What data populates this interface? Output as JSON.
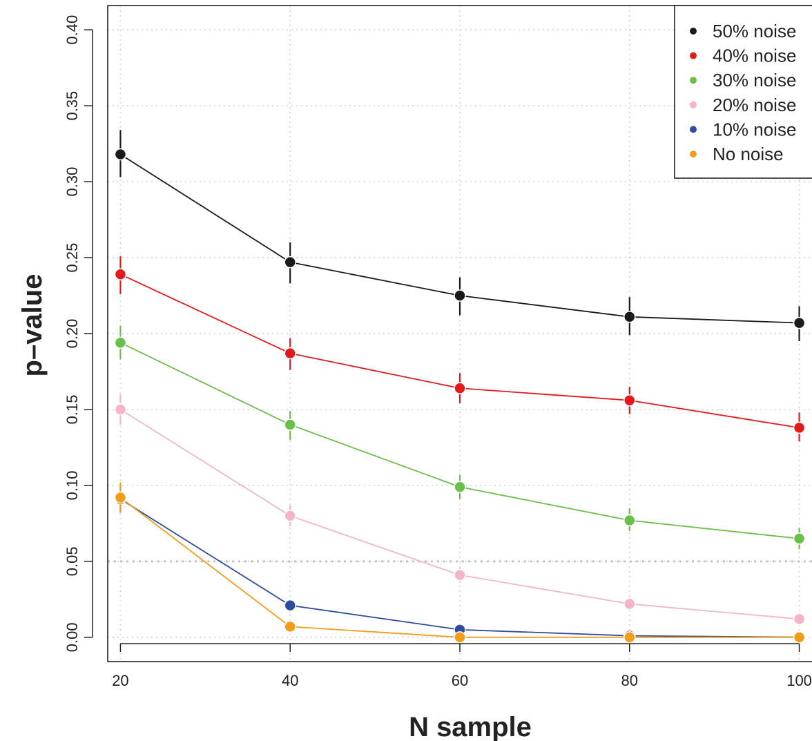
{
  "chart_data": {
    "type": "line",
    "title": "",
    "xlabel": "N sample",
    "ylabel": "p–value",
    "x": [
      20,
      40,
      60,
      80,
      100
    ],
    "x_tick_labels": [
      "20",
      "40",
      "60",
      "80",
      "100"
    ],
    "y_tick_labels": [
      "0.00",
      "0.05",
      "0.10",
      "0.15",
      "0.20",
      "0.25",
      "0.30",
      "0.35",
      "0.40"
    ],
    "y_ticks": [
      0.0,
      0.05,
      0.1,
      0.15,
      0.2,
      0.25,
      0.3,
      0.35,
      0.4
    ],
    "xlim": [
      18.5,
      101.5
    ],
    "ylim": [
      -0.016,
      0.416
    ],
    "grid": true,
    "reference_line": 0.05,
    "legend_position": "top-right",
    "series": [
      {
        "name": "50% noise",
        "color": "#1a1a1a",
        "values": [
          0.318,
          0.247,
          0.225,
          0.211,
          0.207
        ],
        "lower": [
          0.303,
          0.233,
          0.212,
          0.199,
          0.195
        ],
        "upper": [
          0.334,
          0.26,
          0.237,
          0.224,
          0.218
        ]
      },
      {
        "name": "40% noise",
        "color": "#e31a1c",
        "values": [
          0.239,
          0.187,
          0.164,
          0.156,
          0.138
        ],
        "lower": [
          0.226,
          0.176,
          0.154,
          0.147,
          0.129
        ],
        "upper": [
          0.251,
          0.197,
          0.174,
          0.165,
          0.148
        ]
      },
      {
        "name": "30% noise",
        "color": "#6abf4b",
        "values": [
          0.194,
          0.14,
          0.099,
          0.077,
          0.065
        ],
        "lower": [
          0.183,
          0.13,
          0.091,
          0.07,
          0.058
        ],
        "upper": [
          0.205,
          0.149,
          0.107,
          0.085,
          0.072
        ]
      },
      {
        "name": "20% noise",
        "color": "#f4b6c6",
        "values": [
          0.15,
          0.08,
          0.041,
          0.022,
          0.012
        ],
        "lower": [
          0.14,
          0.073,
          0.036,
          0.019,
          0.01
        ],
        "upper": [
          0.16,
          0.087,
          0.046,
          0.025,
          0.014
        ]
      },
      {
        "name": "10% noise",
        "color": "#2e4da0",
        "values": [
          0.091,
          0.021,
          0.005,
          0.001,
          0.0
        ],
        "lower": [
          0.082,
          0.017,
          0.003,
          0.0,
          0.0
        ],
        "upper": [
          0.1,
          0.025,
          0.007,
          0.002,
          0.0
        ]
      },
      {
        "name": "No noise",
        "color": "#f39c1a",
        "values": [
          0.092,
          0.007,
          0.0,
          0.0,
          0.0
        ],
        "lower": [
          0.082,
          0.005,
          0.0,
          0.0,
          0.0
        ],
        "upper": [
          0.102,
          0.009,
          0.0,
          0.0,
          0.0
        ]
      }
    ]
  }
}
